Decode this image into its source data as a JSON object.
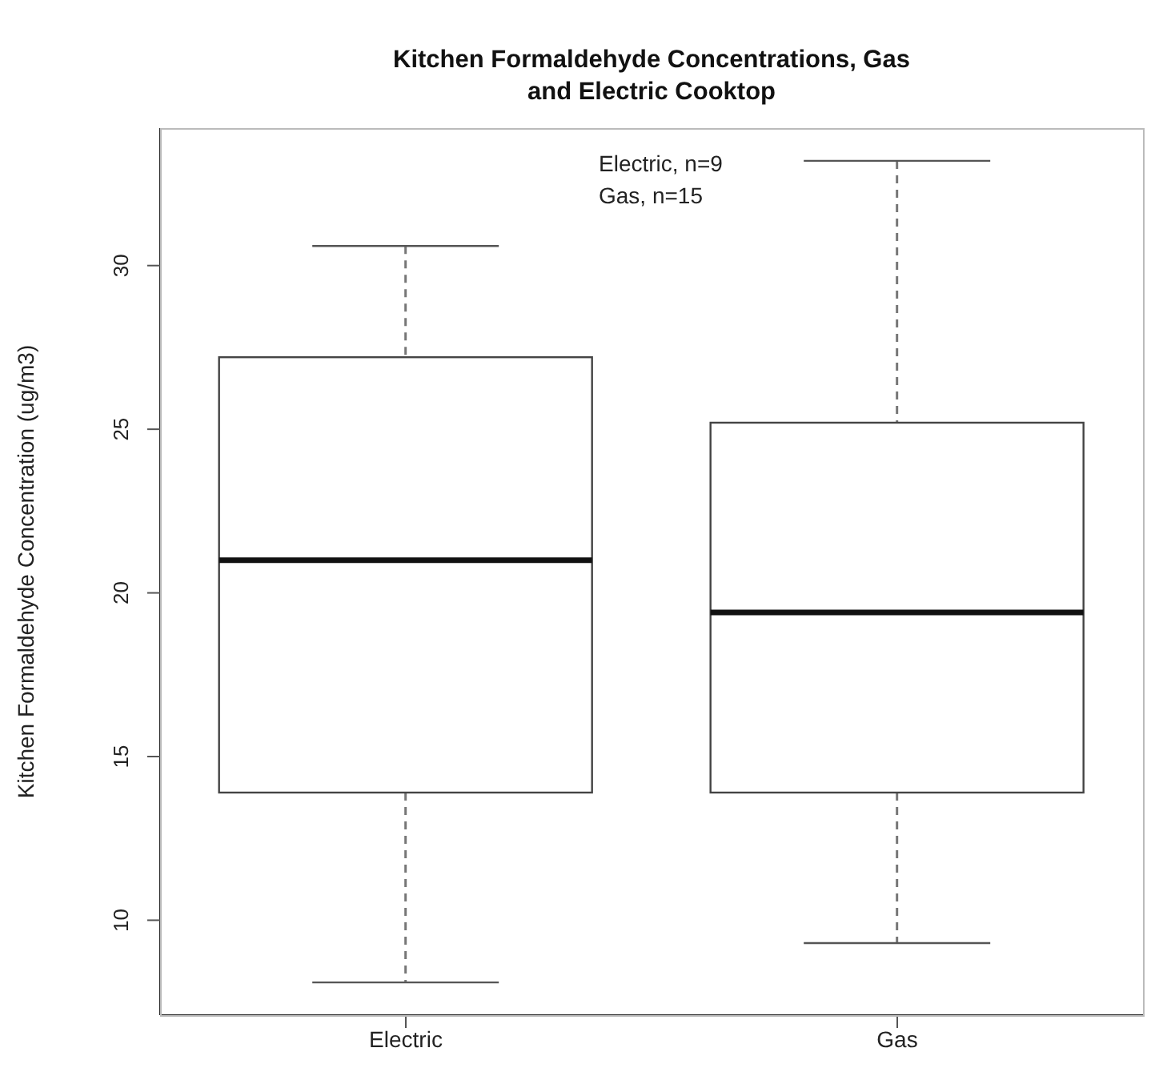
{
  "chart_data": {
    "type": "box",
    "title": "Kitchen Formaldehyde Concentrations, Gas and Electric Cooktop",
    "ylabel": "Kitchen Formaldehyde Concentration (ug/m3)",
    "categories": [
      "Electric",
      "Gas"
    ],
    "boxes": [
      {
        "low": 8.1,
        "q1": 13.9,
        "median": 21.0,
        "q3": 27.2,
        "high": 30.6
      },
      {
        "low": 9.3,
        "q1": 13.9,
        "median": 19.4,
        "q3": 25.2,
        "high": 33.2
      }
    ],
    "ylim": [
      7.1,
      34.2
    ],
    "yticks": [
      10,
      15,
      20,
      25,
      30
    ],
    "annotations": [
      "Electric, n=9",
      "Gas, n=15"
    ]
  }
}
